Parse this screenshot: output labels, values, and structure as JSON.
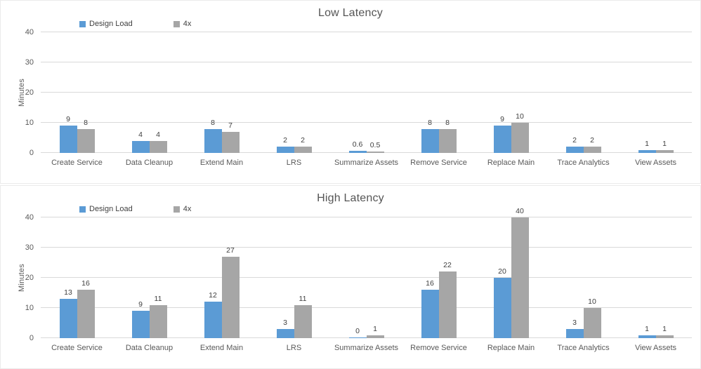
{
  "colors": {
    "series_design_load": "#5B9BD5",
    "series_4x": "#A6A6A6",
    "gridline": "#D9D9D9",
    "axis_text": "#595959",
    "value_label_text": "#404040",
    "title_text": "#555555",
    "background": "#FFFFFF"
  },
  "chart_data": [
    {
      "type": "bar",
      "title": "Low Latency",
      "xlabel": "",
      "ylabel": "Minutes",
      "ylim": [
        0,
        40
      ],
      "yticks": [
        0,
        10,
        20,
        30,
        40
      ],
      "grid": true,
      "legend_position": "top-left",
      "categories": [
        "Create Service",
        "Data Cleanup",
        "Extend Main",
        "LRS",
        "Summarize Assets",
        "Remove Service",
        "Replace Main",
        "Trace Analytics",
        "View Assets"
      ],
      "series": [
        {
          "name": "Design Load",
          "color": "#5B9BD5",
          "values": [
            9,
            4,
            8,
            2,
            0.6,
            8,
            9,
            2,
            1
          ]
        },
        {
          "name": "4x",
          "color": "#A6A6A6",
          "values": [
            8,
            4,
            7,
            2,
            0.5,
            8,
            10,
            2,
            1
          ]
        }
      ]
    },
    {
      "type": "bar",
      "title": "High Latency",
      "xlabel": "",
      "ylabel": "Minutes",
      "ylim": [
        0,
        40
      ],
      "yticks": [
        0,
        10,
        20,
        30,
        40
      ],
      "grid": true,
      "legend_position": "top-left",
      "categories": [
        "Create Service",
        "Data Cleanup",
        "Extend Main",
        "LRS",
        "Summarize Assets",
        "Remove Service",
        "Replace Main",
        "Trace Analytics",
        "View Assets"
      ],
      "series": [
        {
          "name": "Design Load",
          "color": "#5B9BD5",
          "values": [
            13,
            9,
            12,
            3,
            0,
            16,
            20,
            3,
            1
          ]
        },
        {
          "name": "4x",
          "color": "#A6A6A6",
          "values": [
            16,
            11,
            27,
            11,
            1,
            22,
            40,
            10,
            1
          ]
        }
      ]
    }
  ]
}
